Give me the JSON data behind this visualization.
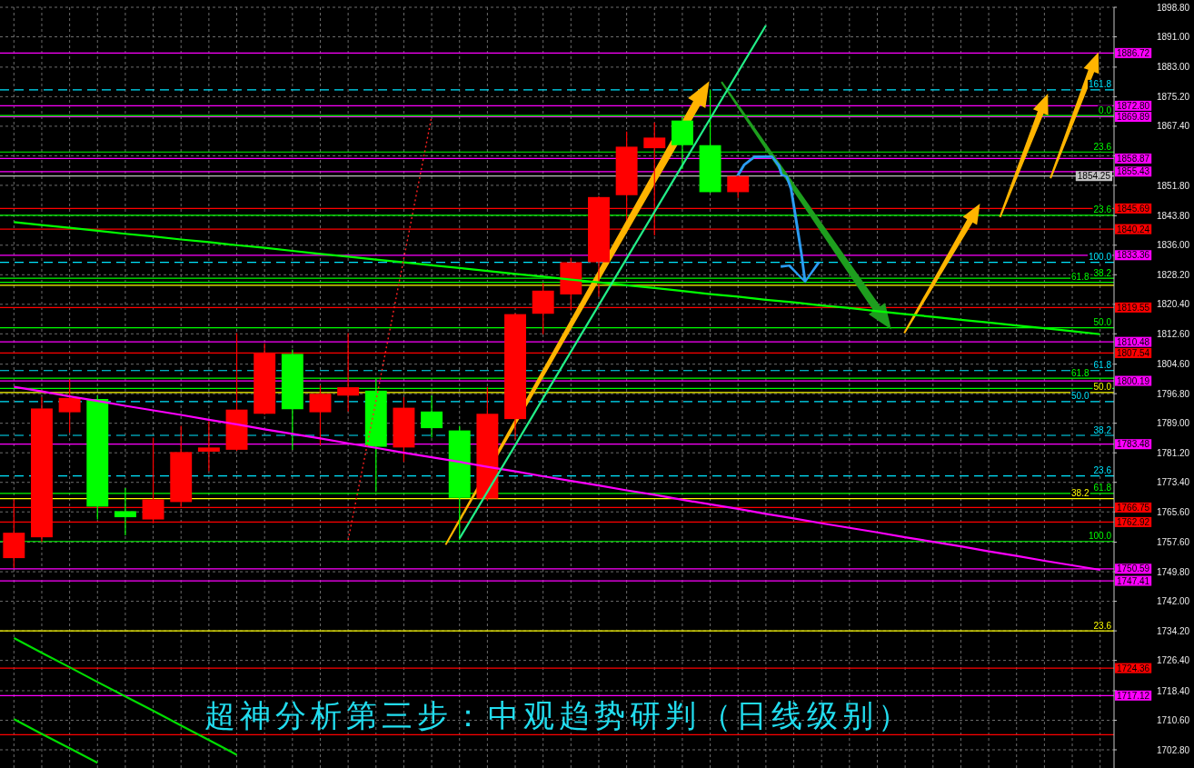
{
  "chart_data": {
    "type": "candlestick",
    "title": "超神分析第三步：中观趋势研判（日线级别）",
    "categories": [
      null,
      null,
      null,
      null,
      null,
      null,
      null,
      null,
      null,
      null,
      null,
      null,
      null,
      null,
      null,
      null,
      null,
      null,
      null,
      null,
      null,
      null,
      null,
      null,
      null,
      null,
      null,
      null,
      null,
      null,
      null,
      null,
      null,
      null,
      null,
      null,
      null,
      null,
      null,
      null
    ],
    "ohlc": [
      [
        1753.4,
        1768.9,
        1750.8,
        1760.1
      ],
      [
        1758.9,
        1795.9,
        1757.7,
        1792.9
      ],
      [
        1791.9,
        1800.6,
        1786.5,
        1795.7
      ],
      [
        1795.4,
        1796.3,
        1763.6,
        1767.0
      ],
      [
        1765.8,
        1771.9,
        1759.4,
        1764.2
      ],
      [
        1763.6,
        1785.2,
        1762.6,
        1768.9
      ],
      [
        1768.2,
        1788.3,
        1766.9,
        1781.4
      ],
      [
        1781.5,
        1789.5,
        1776.3,
        1782.6
      ],
      [
        1782.0,
        1812.8,
        1781.7,
        1792.6
      ],
      [
        1791.5,
        1810.1,
        1791.3,
        1807.6
      ],
      [
        1807.3,
        1808.5,
        1782.0,
        1792.7
      ],
      [
        1791.9,
        1799.0,
        1783.2,
        1796.8
      ],
      [
        1796.3,
        1812.8,
        1792.1,
        1798.5
      ],
      [
        1797.6,
        1800.7,
        1770.9,
        1782.8
      ],
      [
        1782.6,
        1795.9,
        1778.8,
        1793.1
      ],
      [
        1792.1,
        1796.3,
        1785.2,
        1787.7
      ],
      [
        1787.1,
        1788.3,
        1758.2,
        1769.3
      ],
      [
        1769.1,
        1798.6,
        1768.5,
        1791.5
      ],
      [
        1790.1,
        1818.0,
        1784.8,
        1817.8
      ],
      [
        1817.9,
        1826.0,
        1812.5,
        1824.0
      ],
      [
        1823.0,
        1832.7,
        1818.8,
        1831.5
      ],
      [
        1831.5,
        1848.9,
        1822.4,
        1848.7
      ],
      [
        1849.2,
        1866.0,
        1842.6,
        1862.0
      ],
      [
        1861.6,
        1868.4,
        1838.6,
        1864.4
      ],
      [
        1868.9,
        1869.9,
        1856.1,
        1862.4
      ],
      [
        1862.4,
        1877.0,
        1849.8,
        1850.0
      ],
      [
        1850.0,
        1854.4,
        1848.5,
        1854.25
      ],
      null,
      null,
      null,
      null,
      null,
      null,
      null,
      null,
      null,
      null,
      null,
      null,
      null
    ],
    "colors": [
      "#ff0000",
      "#ff0000",
      "#ff0000",
      "#00ff00",
      "#00ff00",
      "#ff0000",
      "#ff0000",
      "#ff0000",
      "#ff0000",
      "#ff0000",
      "#00ff00",
      "#ff0000",
      "#ff0000",
      "#00ff00",
      "#ff0000",
      "#00ff00",
      "#00ff00",
      "#ff0000",
      "#ff0000",
      "#ff0000",
      "#ff0000",
      "#ff0000",
      "#ff0000",
      "#ff0000",
      "#00ff00",
      "#00ff00",
      "#ff0000",
      null,
      null,
      null,
      null,
      null,
      null,
      null,
      null,
      null,
      null,
      null,
      null,
      null
    ],
    "series": [
      {
        "type": "line",
        "color": "#00ff00",
        "values": [
          1842.1,
          1841.3,
          1840.6,
          1839.8,
          1839.0,
          1838.3,
          1837.5,
          1836.8,
          1836.0,
          1835.3,
          1834.5,
          1833.7,
          1833.0,
          1832.2,
          1831.5,
          1830.7,
          1830.0,
          1829.2,
          1828.4,
          1827.7,
          1826.9,
          1826.2,
          1825.4,
          1824.7,
          1823.9,
          1823.1,
          1822.4,
          1821.6,
          1820.9,
          1820.1,
          1819.4,
          1818.6,
          1817.8,
          1817.1,
          1816.3,
          1815.6,
          1814.8,
          1814.1,
          1813.3,
          1812.5
        ]
      },
      {
        "type": "line",
        "color": "#ff00ff",
        "values": [
          1798.6,
          1797.4,
          1796.1,
          1794.9,
          1793.6,
          1792.4,
          1791.2,
          1789.9,
          1788.7,
          1787.4,
          1786.2,
          1785.0,
          1783.7,
          1782.5,
          1781.2,
          1780.0,
          1778.8,
          1777.5,
          1776.3,
          1775.0,
          1773.8,
          1772.6,
          1771.3,
          1770.1,
          1768.8,
          1767.6,
          1766.4,
          1765.1,
          1763.9,
          1762.6,
          1761.4,
          1760.2,
          1758.9,
          1757.7,
          1756.5,
          1755.2,
          1754.0,
          1752.7,
          1751.5,
          1750.3
        ]
      },
      {
        "type": "line",
        "color": "#22ee88",
        "values": [
          null,
          null,
          null,
          null,
          null,
          null,
          null,
          null,
          null,
          null,
          null,
          null,
          null,
          null,
          null,
          null,
          1758.6,
          1770.9,
          1783.2,
          1795.6,
          1807.9,
          1820.2,
          1832.5,
          1844.8,
          1857.1,
          1869.4,
          1881.7,
          1894.0,
          null,
          null,
          null,
          null,
          null,
          null,
          null,
          null,
          null,
          null,
          null,
          null
        ]
      },
      {
        "type": "line",
        "color": "#ff2020",
        "line_style": "dotted",
        "values": [
          null,
          null,
          null,
          null,
          null,
          null,
          null,
          null,
          null,
          null,
          null,
          null,
          1758.2,
          1794.9,
          1832.5,
          1870.0,
          null,
          null,
          null,
          null,
          null,
          null,
          null,
          null,
          null,
          null,
          null,
          null,
          null,
          null,
          null,
          null,
          null,
          null,
          null,
          null,
          null,
          null,
          null,
          null
        ]
      },
      {
        "type": "line",
        "color": "#00dd00",
        "values": [
          1732.3,
          1728.4,
          1724.6,
          1720.7,
          1716.9,
          1713.1,
          1709.2,
          1705.4,
          1701.5,
          null,
          null,
          null,
          null,
          null,
          null,
          null,
          null,
          null,
          null,
          null,
          null,
          null,
          null,
          null,
          null,
          null,
          null,
          null,
          null,
          null,
          null,
          null,
          null,
          null,
          null,
          null,
          null,
          null,
          null,
          null
        ]
      },
      {
        "type": "line",
        "color": "#00dd00",
        "values": [
          1710.9,
          1707.0,
          1703.2,
          1699.4,
          null,
          null,
          null,
          null,
          null,
          null,
          null,
          null,
          null,
          null,
          null,
          null,
          null,
          null,
          null,
          null,
          null,
          null,
          null,
          null,
          null,
          null,
          null,
          null,
          null,
          null,
          null,
          null,
          null,
          null,
          null,
          null,
          null,
          null,
          null,
          null
        ]
      }
    ],
    "ylim": [
      1698.0,
      1898.8
    ],
    "yticks": [
      {
        "value": 1898.8,
        "label": "1898.80"
      },
      {
        "value": 1891.0,
        "label": "1891.00"
      },
      {
        "value": 1883.0,
        "label": "1883.00"
      },
      {
        "value": 1875.2,
        "label": "1875.20"
      },
      {
        "value": 1867.4,
        "label": "1867.40"
      },
      {
        "value": 1859.6,
        "label": null
      },
      {
        "value": 1851.8,
        "label": "1851.80"
      },
      {
        "value": 1843.8,
        "label": "1843.80"
      },
      {
        "value": 1836.0,
        "label": "1836.00"
      },
      {
        "value": 1828.2,
        "label": "1828.20"
      },
      {
        "value": 1820.4,
        "label": "1820.40"
      },
      {
        "value": 1812.6,
        "label": "1812.60"
      },
      {
        "value": 1804.6,
        "label": "1804.60"
      },
      {
        "value": 1796.8,
        "label": "1796.80"
      },
      {
        "value": 1789.0,
        "label": "1789.00"
      },
      {
        "value": 1781.2,
        "label": "1781.20"
      },
      {
        "value": 1773.4,
        "label": "1773.40"
      },
      {
        "value": 1765.6,
        "label": "1765.60"
      },
      {
        "value": 1757.6,
        "label": "1757.60"
      },
      {
        "value": 1749.8,
        "label": "1749.80"
      },
      {
        "value": 1742.0,
        "label": "1742.00"
      },
      {
        "value": 1734.2,
        "label": "1734.20"
      },
      {
        "value": 1726.4,
        "label": "1726.40"
      },
      {
        "value": 1718.4,
        "label": "1718.40"
      },
      {
        "value": 1710.6,
        "label": "1710.60"
      },
      {
        "value": 1702.8,
        "label": "1702.80"
      }
    ],
    "tick_labels": "y",
    "grid": true,
    "ref_lines": [
      {
        "axis": "y",
        "value": 1886.72,
        "label": "1886.72",
        "color": "#ff00ff"
      },
      {
        "axis": "y",
        "value": 1872.8,
        "label": "1872.80",
        "color": "#ff00ff"
      },
      {
        "axis": "y",
        "value": 1869.89,
        "label": "1869.89",
        "color": "#ff00ff"
      },
      {
        "axis": "y",
        "value": 1858.87,
        "label": "1858.87",
        "color": "#ff00ff"
      },
      {
        "axis": "y",
        "value": 1855.43,
        "label": "1855.43",
        "color": "#ff00ff"
      },
      {
        "axis": "y",
        "value": 1854.25,
        "label": "1854.25",
        "color": "#c0c0c0"
      },
      {
        "axis": "y",
        "value": 1845.69,
        "label": "1845.69",
        "color": "#ff0000"
      },
      {
        "axis": "y",
        "value": 1840.24,
        "label": "1840.24",
        "color": "#ff0000"
      },
      {
        "axis": "y",
        "value": 1833.36,
        "label": "1833.36",
        "color": "#ff00ff"
      },
      {
        "axis": "y",
        "value": 1819.55,
        "label": "1819.55",
        "color": "#ff0000"
      },
      {
        "axis": "y",
        "value": 1810.48,
        "label": "1810.48",
        "color": "#ff00ff"
      },
      {
        "axis": "y",
        "value": 1807.54,
        "label": "1807.54",
        "color": "#ff0000"
      },
      {
        "axis": "y",
        "value": 1800.19,
        "label": "1800.19",
        "color": "#ff00ff"
      },
      {
        "axis": "y",
        "value": 1783.48,
        "label": "1783.48",
        "color": "#ff00ff"
      },
      {
        "axis": "y",
        "value": 1766.75,
        "label": "1766.75",
        "color": "#ff0000"
      },
      {
        "axis": "y",
        "value": 1762.92,
        "label": "1762.92",
        "color": "#ff0000"
      },
      {
        "axis": "y",
        "value": 1750.59,
        "label": "1750.59",
        "color": "#ff00ff"
      },
      {
        "axis": "y",
        "value": 1747.41,
        "label": "1747.41",
        "color": "#ff00ff"
      },
      {
        "axis": "y",
        "value": 1724.36,
        "label": "1724.36",
        "color": "#ff0000"
      },
      {
        "axis": "y",
        "value": 1717.12,
        "label": "1717.12",
        "color": "#ff00ff"
      },
      {
        "axis": "y",
        "value": 1706.8,
        "color": "#ff0000"
      },
      {
        "axis": "y",
        "value": 1877.0,
        "color": "#00e5ff",
        "line_style": "dashed"
      },
      {
        "axis": "y",
        "value": 1870.2,
        "color": "#00ff00"
      },
      {
        "axis": "y",
        "value": 1860.6,
        "color": "#00ff00"
      },
      {
        "axis": "y",
        "value": 1843.9,
        "color": "#00ff00"
      },
      {
        "axis": "y",
        "value": 1831.5,
        "color": "#00e5ff",
        "line_style": "dashed"
      },
      {
        "axis": "y",
        "value": 1827.3,
        "color": "#00ff00"
      },
      {
        "axis": "y",
        "value": 1826.2,
        "color": "#00ff00"
      },
      {
        "axis": "y",
        "value": 1825.4,
        "color": "#ffff00"
      },
      {
        "axis": "y",
        "value": 1814.2,
        "color": "#00ff00"
      },
      {
        "axis": "y",
        "value": 1802.9,
        "color": "#00e5ff",
        "line_style": "dashed"
      },
      {
        "axis": "y",
        "value": 1800.9,
        "color": "#00ff00"
      },
      {
        "axis": "y",
        "value": 1798.2,
        "color": "#00ff00"
      },
      {
        "axis": "y",
        "value": 1797.1,
        "color": "#ffff00"
      },
      {
        "axis": "y",
        "value": 1794.7,
        "color": "#00e5ff",
        "line_style": "dashed"
      },
      {
        "axis": "y",
        "value": 1785.8,
        "color": "#00e5ff",
        "line_style": "dashed"
      },
      {
        "axis": "y",
        "value": 1775.1,
        "color": "#00e5ff",
        "line_style": "dashed"
      },
      {
        "axis": "y",
        "value": 1770.5,
        "color": "#00ff00"
      },
      {
        "axis": "y",
        "value": 1769.1,
        "color": "#ffff00"
      },
      {
        "axis": "y",
        "value": 1757.8,
        "color": "#00ff00"
      },
      {
        "axis": "y",
        "value": 1734.2,
        "color": "#ffff00"
      }
    ],
    "annotations": [
      {
        "text": "161.8",
        "y": 1877.0
      },
      {
        "text": "0.0",
        "y": 1870.2
      },
      {
        "text": "23.6",
        "y": 1860.6
      },
      {
        "text": "23.6",
        "y": 1843.9
      },
      {
        "text": "100.0",
        "y": 1831.5
      },
      {
        "text": "38.2",
        "y": 1827.3
      },
      {
        "text": "61.8",
        "y": 1826.2
      },
      {
        "text": "50.0",
        "y": 1814.2
      },
      {
        "text": "61.8",
        "y": 1802.9
      },
      {
        "text": "61.8",
        "y": 1800.9
      },
      {
        "text": "50.0",
        "y": 1797.1
      },
      {
        "text": "50.0",
        "y": 1794.7
      },
      {
        "text": "38.2",
        "y": 1785.8
      },
      {
        "text": "23.6",
        "y": 1775.1
      },
      {
        "text": "61.8",
        "y": 1770.5
      },
      {
        "text": "38.2",
        "y": 1769.1
      },
      {
        "text": "100.0",
        "y": 1757.8
      },
      {
        "text": "23.6",
        "y": 1734.2
      }
    ]
  }
}
